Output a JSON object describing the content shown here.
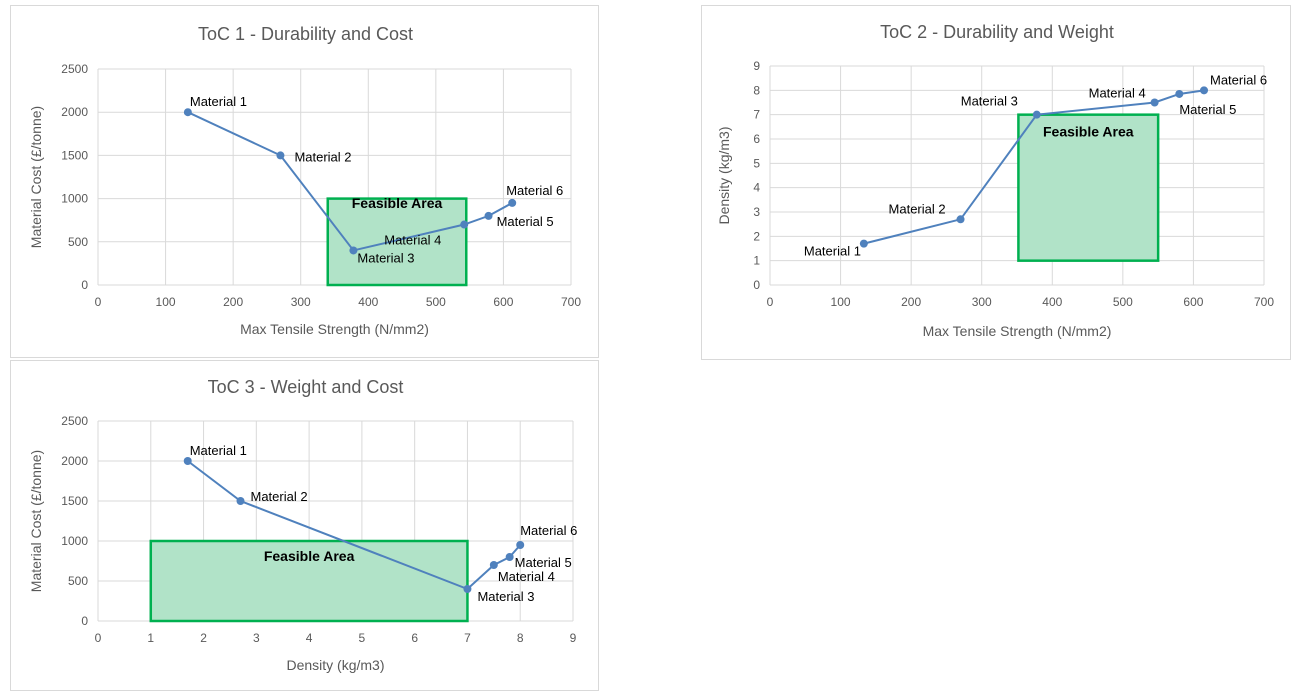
{
  "chart_data": [
    {
      "type": "line",
      "title": "ToC 1 - Durability and Cost",
      "xlabel": "Max Tensile Strength (N/mm2)",
      "ylabel": "Material Cost (£/tonne)",
      "xlim": [
        0,
        700
      ],
      "ylim": [
        0,
        2500
      ],
      "xticks": [
        0,
        100,
        200,
        300,
        400,
        500,
        600,
        700
      ],
      "yticks": [
        0,
        500,
        1000,
        1500,
        2000,
        2500
      ],
      "grid": true,
      "legend": "none",
      "line_color": "#4f81bd",
      "region": {
        "label": "Feasible Area",
        "x": [
          340,
          545
        ],
        "y": [
          0,
          1000
        ],
        "fill": "#b1e3c8",
        "stroke": "#00b050"
      },
      "points": [
        {
          "label": "Material 1",
          "x": 133,
          "y": 2000
        },
        {
          "label": "Material 2",
          "x": 270,
          "y": 1500
        },
        {
          "label": "Material 3",
          "x": 378,
          "y": 400
        },
        {
          "label": "Material 4",
          "x": 542,
          "y": 700
        },
        {
          "label": "Material 5",
          "x": 578,
          "y": 800
        },
        {
          "label": "Material 6",
          "x": 613,
          "y": 950
        }
      ]
    },
    {
      "type": "line",
      "title": "ToC 2 - Durability and Weight",
      "xlabel": "Max Tensile Strength (N/mm2)",
      "ylabel": "Density (kg/m3)",
      "xlim": [
        0,
        700
      ],
      "ylim": [
        0,
        9
      ],
      "xticks": [
        0,
        100,
        200,
        300,
        400,
        500,
        600,
        700
      ],
      "yticks": [
        0,
        1,
        2,
        3,
        4,
        5,
        6,
        7,
        8,
        9
      ],
      "grid": true,
      "legend": "none",
      "line_color": "#4f81bd",
      "region": {
        "label": "Feasible Area",
        "x": [
          352,
          550
        ],
        "y": [
          1,
          7
        ],
        "fill": "#b1e3c8",
        "stroke": "#00b050"
      },
      "points": [
        {
          "label": "Material 1",
          "x": 133,
          "y": 1.7
        },
        {
          "label": "Material 2",
          "x": 270,
          "y": 2.7
        },
        {
          "label": "Material 3",
          "x": 378,
          "y": 7.0
        },
        {
          "label": "Material 4",
          "x": 545,
          "y": 7.5
        },
        {
          "label": "Material 5",
          "x": 580,
          "y": 7.85
        },
        {
          "label": "Material 6",
          "x": 615,
          "y": 8.0
        }
      ]
    },
    {
      "type": "line",
      "title": "ToC 3 - Weight and Cost",
      "xlabel": "Density (kg/m3)",
      "ylabel": "Material Cost (£/tonne)",
      "xlim": [
        0,
        9
      ],
      "ylim": [
        0,
        2500
      ],
      "xticks": [
        0,
        1,
        2,
        3,
        4,
        5,
        6,
        7,
        8,
        9
      ],
      "yticks": [
        0,
        500,
        1000,
        1500,
        2000,
        2500
      ],
      "grid": true,
      "legend": "none",
      "line_color": "#4f81bd",
      "region": {
        "label": "Feasible Area",
        "x": [
          1,
          7
        ],
        "y": [
          0,
          1000
        ],
        "fill": "#b1e3c8",
        "stroke": "#00b050"
      },
      "points": [
        {
          "label": "Material 1",
          "x": 1.7,
          "y": 2000
        },
        {
          "label": "Material 2",
          "x": 2.7,
          "y": 1500
        },
        {
          "label": "Material 3",
          "x": 7.0,
          "y": 400
        },
        {
          "label": "Material 4",
          "x": 7.5,
          "y": 700
        },
        {
          "label": "Material 5",
          "x": 7.8,
          "y": 800
        },
        {
          "label": "Material 6",
          "x": 8.0,
          "y": 950
        }
      ]
    }
  ]
}
